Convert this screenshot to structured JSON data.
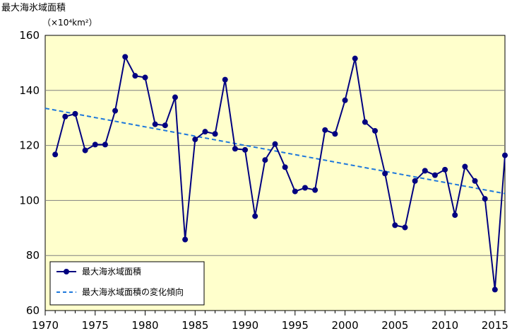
{
  "chart_data": {
    "type": "line",
    "ylabel": "最大海氷域面積",
    "yunit": "（×10⁴km²）",
    "xlim": [
      1970,
      2016
    ],
    "ylim": [
      60,
      160
    ],
    "x_ticks": [
      1970,
      1975,
      1980,
      1985,
      1990,
      1995,
      2000,
      2005,
      2010,
      2015
    ],
    "y_ticks": [
      60,
      80,
      100,
      120,
      140,
      160
    ],
    "grid": true,
    "legend_position": "bottom-left",
    "colors": {
      "plot_background": "#ffffcc",
      "series": "#000080",
      "trend": "#1e78dc",
      "grid": "#808080"
    },
    "series": [
      {
        "name": "最大海氷域面積",
        "style": "line-marker",
        "x": [
          1971,
          1972,
          1973,
          1974,
          1975,
          1976,
          1977,
          1978,
          1979,
          1980,
          1981,
          1982,
          1983,
          1984,
          1985,
          1986,
          1987,
          1988,
          1989,
          1990,
          1991,
          1992,
          1993,
          1994,
          1995,
          1996,
          1997,
          1998,
          1999,
          2000,
          2001,
          2002,
          2003,
          2004,
          2005,
          2006,
          2007,
          2008,
          2009,
          2010,
          2011,
          2012,
          2013,
          2014,
          2015,
          2016
        ],
        "values": [
          116.7,
          130.5,
          131.5,
          118.2,
          120.3,
          120.3,
          132.6,
          152.2,
          145.3,
          144.7,
          127.7,
          127.3,
          137.5,
          85.8,
          122.2,
          125.0,
          124.2,
          143.9,
          118.8,
          118.4,
          94.3,
          114.7,
          120.5,
          112.1,
          103.3,
          104.6,
          103.8,
          125.6,
          124.2,
          136.4,
          151.6,
          128.5,
          125.3,
          109.8,
          91.0,
          90.2,
          107.1,
          110.8,
          109.2,
          111.2,
          94.7,
          112.3,
          107.1,
          100.6,
          67.6,
          116.4
        ]
      },
      {
        "name": "最大海氷域面積の変化傾向",
        "style": "dashed",
        "x": [
          1970,
          2016
        ],
        "values": [
          133.5,
          102.5
        ]
      }
    ]
  }
}
